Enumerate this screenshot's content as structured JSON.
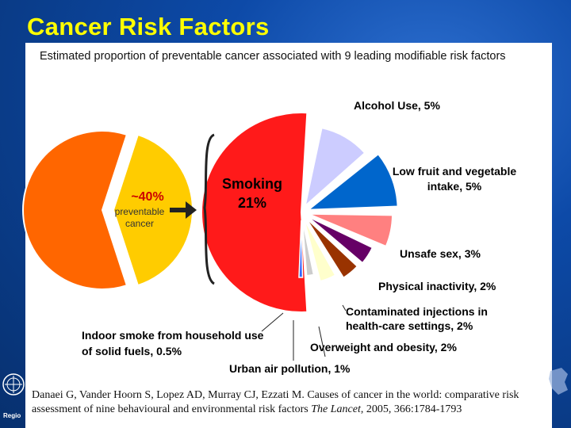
{
  "slide": {
    "title": "Cancer Risk Factors",
    "region_label": "Regio",
    "logo_icon": "who-emblem-icon"
  },
  "chart_data": {
    "type": "pie",
    "title": "Estimated proportion of preventable cancer associated with 9 leading modifiable risk factors",
    "total_pie": {
      "preventable_label_value": "~40%",
      "preventable_label_text": [
        "preventable",
        "cancer"
      ],
      "preventable_share": 40,
      "colors": {
        "preventable": "#ffcc00",
        "other": "#ff6600"
      }
    },
    "slices": [
      {
        "label": "Smoking",
        "value": 21,
        "display": "21%",
        "color": "#ff1a1a"
      },
      {
        "label": "Alcohol Use",
        "value": 5,
        "display": "Alcohol Use, 5%",
        "color": "#ccccff"
      },
      {
        "label": "Low fruit and vegetable intake",
        "value": 5,
        "display": "Low fruit and vegetable intake, 5%",
        "color": "#0066cc"
      },
      {
        "label": "Unsafe sex",
        "value": 3,
        "display": "Unsafe sex, 3%",
        "color": "#ff8080"
      },
      {
        "label": "Physical inactivity",
        "value": 2,
        "display": "Physical inactivity, 2%",
        "color": "#660066"
      },
      {
        "label": "Contaminated injections in health-care settings",
        "value": 2,
        "display": "Contaminated injections in health-care settings, 2%",
        "color": "#993300"
      },
      {
        "label": "Overweight and obesity",
        "value": 2,
        "display": "Overweight and obesity, 2%",
        "color": "#ffffcc"
      },
      {
        "label": "Urban air pollution",
        "value": 1,
        "display": "Urban air pollution, 1%",
        "color": "#cccccc"
      },
      {
        "label": "Indoor smoke from household use of solid fuels",
        "value": 0.5,
        "display": "Indoor smoke from household use of solid fuels, 0.5%",
        "color": "#3366ff"
      }
    ],
    "labels": {
      "smoking_name": "Smoking",
      "smoking_value": "21%",
      "alcohol": "Alcohol Use, 5%",
      "fruit_1": "Low fruit and vegetable",
      "fruit_2": "intake, 5%",
      "unsafe": "Unsafe sex, 3%",
      "physical": "Physical inactivity, 2%",
      "contam_1": "Contaminated injections in",
      "contam_2": "health-care settings, 2%",
      "overweight": "Overweight and obesity, 2%",
      "urban": "Urban air pollution, 1%",
      "indoor_1": "Indoor smoke from household use",
      "indoor_2": "of solid fuels, 0.5%"
    }
  },
  "citation": {
    "authors": "Danaei G, Vander Hoorn S, Lopez AD, Murray CJ, Ezzati M. Causes of cancer in the world: comparative risk assessment of nine behavioural and environmental risk factors",
    "journal": "The Lancet",
    "details": ", 2005, 366:1784-1793"
  }
}
